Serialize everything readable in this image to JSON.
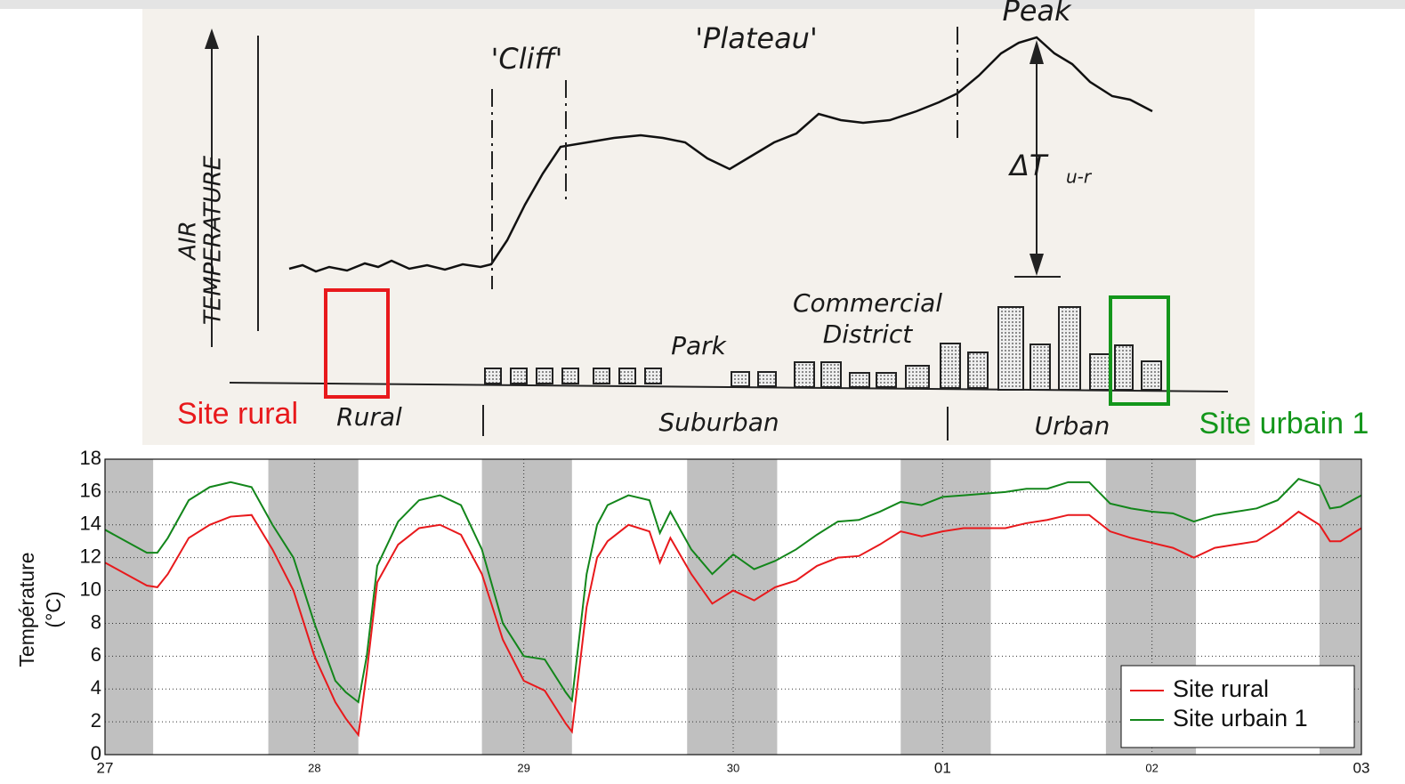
{
  "diagram": {
    "y_label_lines": [
      "AIR",
      "TEMPERATURE"
    ],
    "cliff": "'Cliff'",
    "plateau": "'Plateau'",
    "peak": "Peak",
    "delta": "ΔT",
    "delta_subscript": "u-r",
    "park": "Park",
    "commercial_lines": [
      "Commercial",
      "District"
    ],
    "zones": [
      "Rural",
      "Suburban",
      "Urban"
    ],
    "site_rural": "Site rural",
    "site_urban": "Site urbain 1"
  },
  "chart_data": {
    "type": "line",
    "ylabel_lines": [
      "Température",
      "(°C)"
    ],
    "x": [
      0,
      0.1,
      0.2,
      0.25,
      0.3,
      0.4,
      0.5,
      0.6,
      0.7,
      0.8,
      0.9,
      1.0,
      1.1,
      1.15,
      1.21,
      1.25,
      1.3,
      1.4,
      1.5,
      1.6,
      1.7,
      1.8,
      1.9,
      2.0,
      2.1,
      2.2,
      2.23,
      2.3,
      2.35,
      2.4,
      2.5,
      2.6,
      2.65,
      2.7,
      2.8,
      2.9,
      3.0,
      3.1,
      3.2,
      3.3,
      3.4,
      3.5,
      3.6,
      3.7,
      3.8,
      3.9,
      4.0,
      4.1,
      4.2,
      4.3,
      4.4,
      4.5,
      4.6,
      4.7,
      4.8,
      4.9,
      5.0,
      5.1,
      5.2,
      5.3,
      5.4,
      5.5,
      5.6,
      5.7,
      5.8,
      5.85,
      5.9,
      6.0
    ],
    "series": [
      {
        "name": "Site rural",
        "color": "#e8191c",
        "values": [
          11.7,
          11.0,
          10.3,
          10.2,
          11.0,
          13.2,
          14.0,
          14.5,
          14.6,
          12.5,
          10.0,
          6.0,
          3.2,
          2.2,
          1.2,
          5.0,
          10.5,
          12.8,
          13.8,
          14.0,
          13.4,
          11.0,
          7.0,
          4.5,
          3.9,
          1.9,
          1.4,
          9.0,
          12.0,
          13.0,
          14.0,
          13.6,
          11.7,
          13.2,
          11.0,
          9.2,
          10.0,
          9.4,
          10.2,
          10.6,
          11.5,
          12.0,
          12.1,
          12.8,
          13.6,
          13.3,
          13.6,
          13.8,
          13.8,
          13.8,
          14.1,
          14.3,
          14.6,
          14.6,
          13.6,
          13.2,
          12.9,
          12.6,
          12.0,
          12.6,
          12.8,
          13.0,
          13.8,
          14.8,
          14.0,
          13.0,
          13.0,
          13.8
        ]
      },
      {
        "name": "Site urbain 1",
        "color": "#13861b",
        "values": [
          13.7,
          13.0,
          12.3,
          12.3,
          13.2,
          15.5,
          16.3,
          16.6,
          16.3,
          14.0,
          12.0,
          8.0,
          4.5,
          3.8,
          3.2,
          6.0,
          11.5,
          14.2,
          15.5,
          15.8,
          15.2,
          12.5,
          8.0,
          6.0,
          5.8,
          3.8,
          3.3,
          11.0,
          14.0,
          15.2,
          15.8,
          15.5,
          13.5,
          14.8,
          12.5,
          11.0,
          12.2,
          11.3,
          11.8,
          12.5,
          13.4,
          14.2,
          14.3,
          14.8,
          15.4,
          15.2,
          15.7,
          15.8,
          15.9,
          16.0,
          16.2,
          16.2,
          16.6,
          16.6,
          15.3,
          15.0,
          14.8,
          14.7,
          14.2,
          14.6,
          14.8,
          15.0,
          15.5,
          16.8,
          16.4,
          15.0,
          15.1,
          15.8
        ]
      }
    ],
    "shaded_intervals": [
      [
        0,
        0.23
      ],
      [
        0.78,
        1.21
      ],
      [
        1.8,
        2.23
      ],
      [
        2.78,
        3.21
      ],
      [
        3.8,
        4.23
      ],
      [
        4.78,
        5.21
      ],
      [
        5.8,
        6
      ]
    ],
    "shade_color": "#c0c0c0",
    "xlim": [
      0,
      6
    ],
    "xticks": [
      {
        "value": 0,
        "label": "27"
      },
      {
        "value": 1,
        "label": "28"
      },
      {
        "value": 2,
        "label": "29"
      },
      {
        "value": 3,
        "label": "30"
      },
      {
        "value": 4,
        "label": "01"
      },
      {
        "value": 5,
        "label": "02"
      },
      {
        "value": 6,
        "label": "03"
      }
    ],
    "ylim": [
      0,
      18
    ],
    "yticks": [
      0,
      2,
      4,
      6,
      8,
      10,
      12,
      14,
      16,
      18
    ],
    "grid": true,
    "legend": "lower right"
  }
}
